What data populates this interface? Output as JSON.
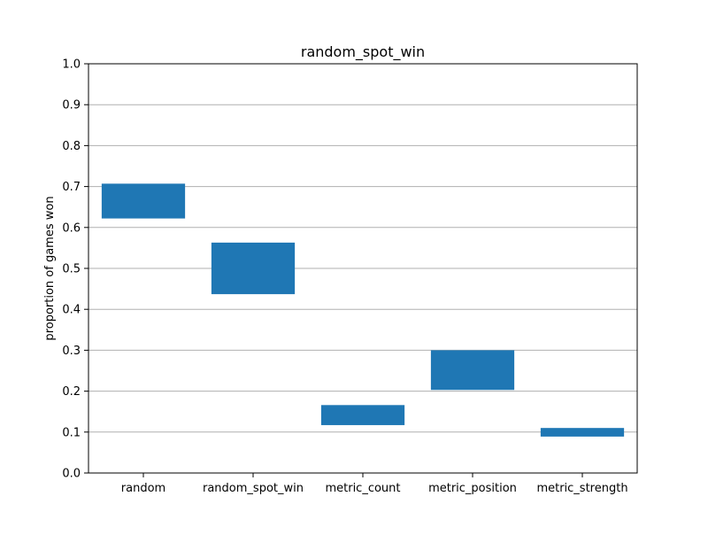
{
  "chart_data": {
    "type": "bar",
    "title": "random_spot_win",
    "xlabel": "",
    "ylabel": "proportion of games won",
    "categories": [
      "random",
      "random_spot_win",
      "metric_count",
      "metric_position",
      "metric_strength"
    ],
    "ranges": [
      {
        "low": 0.622,
        "high": 0.707
      },
      {
        "low": 0.437,
        "high": 0.563
      },
      {
        "low": 0.117,
        "high": 0.166
      },
      {
        "low": 0.203,
        "high": 0.3
      },
      {
        "low": 0.089,
        "high": 0.11
      }
    ],
    "ylim": [
      0,
      1.0
    ],
    "yticks": [
      "0.0",
      "0.1",
      "0.2",
      "0.3",
      "0.4",
      "0.5",
      "0.6",
      "0.7",
      "0.8",
      "0.9",
      "1.0"
    ],
    "grid": {
      "y": true,
      "x": false
    },
    "bar_color": "#1f77b4",
    "grid_color": "#b0b0b0"
  }
}
